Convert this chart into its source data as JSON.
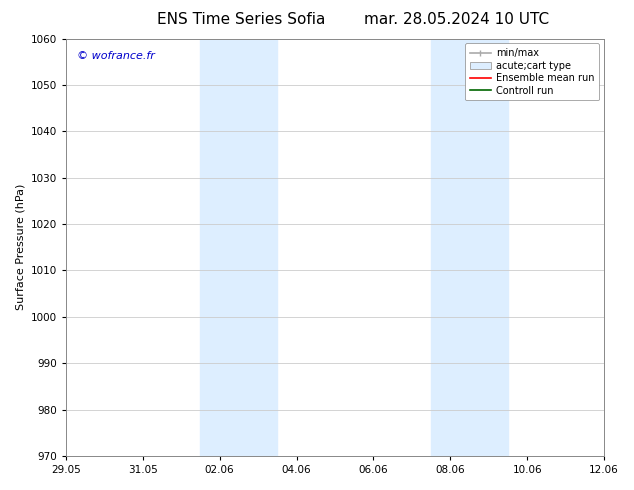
{
  "title_left": "ENS Time Series Sofia",
  "title_right": "mar. 28.05.2024 10 UTC",
  "ylabel": "Surface Pressure (hPa)",
  "ylim": [
    970,
    1060
  ],
  "yticks": [
    970,
    980,
    990,
    1000,
    1010,
    1020,
    1030,
    1040,
    1050,
    1060
  ],
  "xtick_labels": [
    "29.05",
    "31.05",
    "02.06",
    "04.06",
    "06.06",
    "08.06",
    "10.06",
    "12.06"
  ],
  "xtick_positions": [
    0,
    2,
    4,
    6,
    8,
    10,
    12,
    14
  ],
  "xlim": [
    0,
    14
  ],
  "shaded_bands": [
    {
      "x_start": 3.5,
      "x_end": 5.5
    },
    {
      "x_start": 9.5,
      "x_end": 11.5
    }
  ],
  "shade_color": "#ddeeff",
  "watermark": "© wofrance.fr",
  "watermark_color": "#0000cc",
  "background_color": "#ffffff",
  "grid_color": "#cccccc",
  "spine_color": "#888888",
  "title_fontsize": 11,
  "label_fontsize": 8,
  "tick_fontsize": 7.5,
  "legend_fontsize": 7,
  "watermark_fontsize": 8
}
